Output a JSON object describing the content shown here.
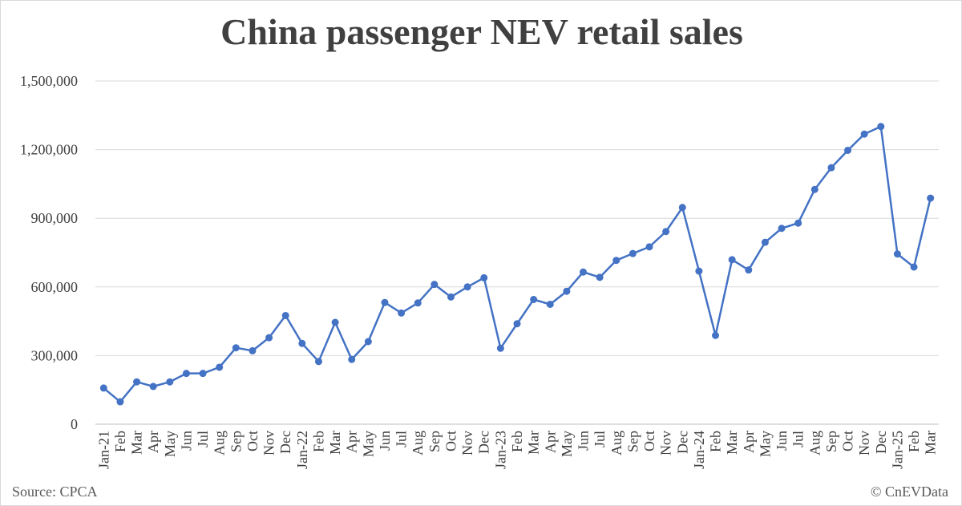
{
  "chart_data": {
    "type": "line",
    "title": "China passenger NEV retail sales",
    "xlabel": "",
    "ylabel": "",
    "ylim": [
      0,
      1500000
    ],
    "yticks": [
      0,
      300000,
      600000,
      900000,
      1200000,
      1500000
    ],
    "ytick_labels": [
      "0",
      "300,000",
      "600,000",
      "900,000",
      "1,200,000",
      "1,500,000"
    ],
    "grid": true,
    "categories": [
      "Jan-21",
      "Feb",
      "Mar",
      "Apr",
      "May",
      "Jun",
      "Jul",
      "Aug",
      "Sep",
      "Oct",
      "Nov",
      "Dec",
      "Jan-22",
      "Feb",
      "Mar",
      "Apr",
      "May",
      "Jun",
      "Jul",
      "Aug",
      "Sep",
      "Oct",
      "Nov",
      "Dec",
      "Jan-23",
      "Feb",
      "Mar",
      "Apr",
      "May",
      "Jun",
      "Jul",
      "Aug",
      "Sep",
      "Oct",
      "Nov",
      "Dec",
      "Jan-24",
      "Feb",
      "Mar",
      "Apr",
      "May",
      "Jun",
      "Jul",
      "Aug",
      "Sep",
      "Oct",
      "Nov",
      "Dec",
      "Jan-25",
      "Feb",
      "Mar"
    ],
    "series": [
      {
        "values": [
          158000,
          98000,
          185000,
          165000,
          185000,
          222000,
          222000,
          249000,
          334000,
          321000,
          378000,
          475000,
          353000,
          274000,
          445000,
          283000,
          361000,
          532000,
          486000,
          530000,
          611000,
          556000,
          600000,
          640000,
          332000,
          439000,
          545000,
          524000,
          581000,
          665000,
          642000,
          716000,
          746000,
          775000,
          842000,
          947000,
          669000,
          388000,
          719000,
          674000,
          795000,
          856000,
          879000,
          1026000,
          1121000,
          1197000,
          1268000,
          1301000,
          744000,
          687000,
          988000
        ],
        "color": "#4472c4"
      }
    ]
  },
  "footer": {
    "source": "Source: CPCA",
    "credit": "© CnEVData"
  }
}
